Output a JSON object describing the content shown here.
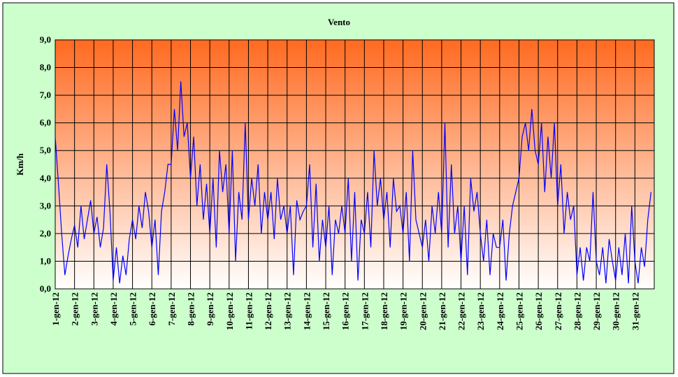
{
  "chart_data": {
    "type": "line",
    "title": "Vento",
    "y_label": "Km/h",
    "categories": [
      "1-gen-12",
      null,
      null,
      null,
      null,
      null,
      "2-gen-12",
      null,
      null,
      null,
      null,
      null,
      "3-gen-12",
      null,
      null,
      null,
      null,
      null,
      "4-gen-12",
      null,
      null,
      null,
      null,
      null,
      "5-gen-12",
      null,
      null,
      null,
      null,
      null,
      "6-gen-12",
      null,
      null,
      null,
      null,
      null,
      "7-gen-12",
      null,
      null,
      null,
      null,
      null,
      "8-gen-12",
      null,
      null,
      null,
      null,
      null,
      "9-gen-12",
      null,
      null,
      null,
      null,
      null,
      "10-gen-12",
      null,
      null,
      null,
      null,
      null,
      "11-gen-12",
      null,
      null,
      null,
      null,
      null,
      "12-gen-12",
      null,
      null,
      null,
      null,
      null,
      "13-gen-12",
      null,
      null,
      null,
      null,
      null,
      "14-gen-12",
      null,
      null,
      null,
      null,
      null,
      "15-gen-12",
      null,
      null,
      null,
      null,
      null,
      "16-gen-12",
      null,
      null,
      null,
      null,
      null,
      "17-gen-12",
      null,
      null,
      null,
      null,
      null,
      "18-gen-12",
      null,
      null,
      null,
      null,
      null,
      "19-gen-12",
      null,
      null,
      null,
      null,
      null,
      "20-gen-12",
      null,
      null,
      null,
      null,
      null,
      "21-gen-12",
      null,
      null,
      null,
      null,
      null,
      "22-gen-12",
      null,
      null,
      null,
      null,
      null,
      "23-gen-12",
      null,
      null,
      null,
      null,
      null,
      "24-gen-12",
      null,
      null,
      null,
      null,
      null,
      "25-gen-12",
      null,
      null,
      null,
      null,
      null,
      "26-gen-12",
      null,
      null,
      null,
      null,
      null,
      "27-gen-12",
      null,
      null,
      null,
      null,
      null,
      "28-gen-12",
      null,
      null,
      null,
      null,
      null,
      "29-gen-12",
      null,
      null,
      null,
      null,
      null,
      "30-gen-12",
      null,
      null,
      null,
      null,
      null,
      "31-gen-12",
      null,
      null,
      null,
      null,
      null
    ],
    "series": [
      {
        "color": "#0000ff",
        "values": [
          5.5,
          3.8,
          2.0,
          0.5,
          1.2,
          1.8,
          2.3,
          1.5,
          3.0,
          1.8,
          2.5,
          3.2,
          2.0,
          2.6,
          1.5,
          2.2,
          4.5,
          2.8,
          0.3,
          1.5,
          0.2,
          1.2,
          0.5,
          1.8,
          2.5,
          1.8,
          3.0,
          2.2,
          3.5,
          2.8,
          1.5,
          2.5,
          0.5,
          2.8,
          3.5,
          4.5,
          4.5,
          6.5,
          5.0,
          7.5,
          5.5,
          6.0,
          4.0,
          5.5,
          3.0,
          4.5,
          2.5,
          3.8,
          2.0,
          4.0,
          1.5,
          5.0,
          3.5,
          4.5,
          2.0,
          5.0,
          1.0,
          3.5,
          2.5,
          6.0,
          2.5,
          4.0,
          3.0,
          4.5,
          2.0,
          3.5,
          2.5,
          3.5,
          1.8,
          4.0,
          2.5,
          3.0,
          2.0,
          3.0,
          0.5,
          3.2,
          2.5,
          2.8,
          3.0,
          4.5,
          1.5,
          3.8,
          1.0,
          2.5,
          1.5,
          3.0,
          0.5,
          2.5,
          2.0,
          3.0,
          2.0,
          4.0,
          1.0,
          3.5,
          0.3,
          2.5,
          2.0,
          3.5,
          1.5,
          5.0,
          3.0,
          4.0,
          2.5,
          3.5,
          1.5,
          4.0,
          2.8,
          3.0,
          2.0,
          3.5,
          1.0,
          5.0,
          2.5,
          2.0,
          1.5,
          2.5,
          1.0,
          3.0,
          2.0,
          3.5,
          2.0,
          6.0,
          1.5,
          4.5,
          2.0,
          3.0,
          1.0,
          3.0,
          0.5,
          4.0,
          2.8,
          3.5,
          2.0,
          1.0,
          2.5,
          0.5,
          2.0,
          1.5,
          1.5,
          2.5,
          0.3,
          2.0,
          3.0,
          3.5,
          4.0,
          5.5,
          6.0,
          5.0,
          6.5,
          5.0,
          4.5,
          6.0,
          3.5,
          5.5,
          4.0,
          6.0,
          3.0,
          4.5,
          2.0,
          3.5,
          2.5,
          3.0,
          0.5,
          1.5,
          0.3,
          1.5,
          1.0,
          3.5,
          1.0,
          0.5,
          1.5,
          0.2,
          1.8,
          1.0,
          0.3,
          1.5,
          0.5,
          2.0,
          0.2,
          3.0,
          1.0,
          0.2,
          1.5,
          0.8,
          2.5,
          3.5
        ]
      }
    ],
    "ylim": [
      0,
      9
    ],
    "yticks": [
      {
        "value": 0,
        "label": "0,0"
      },
      {
        "value": 1,
        "label": "1,0"
      },
      {
        "value": 2,
        "label": "2,0"
      },
      {
        "value": 3,
        "label": "3,0"
      },
      {
        "value": 4,
        "label": "4,0"
      },
      {
        "value": 5,
        "label": "5,0"
      },
      {
        "value": 6,
        "label": "6,0"
      },
      {
        "value": 7,
        "label": "7,0"
      },
      {
        "value": 8,
        "label": "8,0"
      },
      {
        "value": 9,
        "label": "9,0"
      }
    ],
    "grid": true
  }
}
